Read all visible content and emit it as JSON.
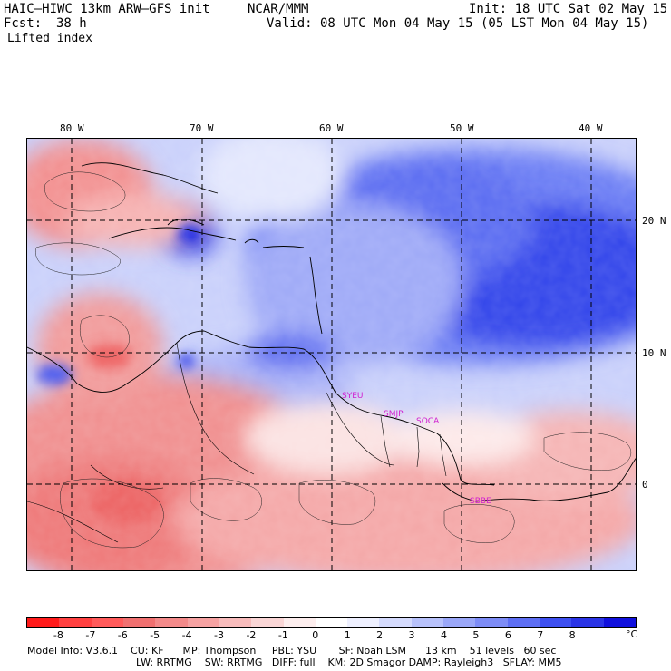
{
  "header": {
    "model": "HAIC–HIWC 13km ARW–GFS init",
    "org": "NCAR/MMM",
    "init": "Init: 18 UTC Sat 02 May 15",
    "fcst_label": "Fcst:",
    "fcst_value": "38 h",
    "valid": "Valid: 08 UTC Mon 04 May 15 (05 LST Mon 04 May 15)",
    "field": "Lifted index"
  },
  "map": {
    "lon_labels": [
      "80 W",
      "70 W",
      "60 W",
      "50 W",
      "40 W"
    ],
    "lat_labels": [
      "20 N",
      "10 N",
      "0"
    ],
    "stations": [
      "SYEU",
      "SMJP",
      "SOCA",
      "SBBE"
    ]
  },
  "colorbar": {
    "unit": "°C",
    "ticks": [
      "-8",
      "-7",
      "-6",
      "-5",
      "-4",
      "-3",
      "-2",
      "-1",
      "0",
      "1",
      "2",
      "3",
      "4",
      "5",
      "6",
      "7",
      "8"
    ],
    "colors": [
      "#ff1a1a",
      "#ff4040",
      "#ff5a5a",
      "#f07070",
      "#f38a8a",
      "#f6a2a2",
      "#f8bcbc",
      "#fad6d6",
      "#fdeeee",
      "#ffffff",
      "#eef0ff",
      "#d5dbfd",
      "#b8c2fb",
      "#9aa7f8",
      "#7d8cf6",
      "#5d6ef3",
      "#3d4ff0",
      "#2a34e6",
      "#1010dd"
    ]
  },
  "footer": {
    "line1": "Model Info: V3.6.1    CU: KF      MP: Thompson     PBL: YSU       SF: Noah LSM      13 km    51 levels   60 sec",
    "line2": "LW: RRTMG    SW: RRTMG   DIFF: full    KM: 2D Smagor DAMP: Rayleigh3   SFLAY: MM5"
  }
}
